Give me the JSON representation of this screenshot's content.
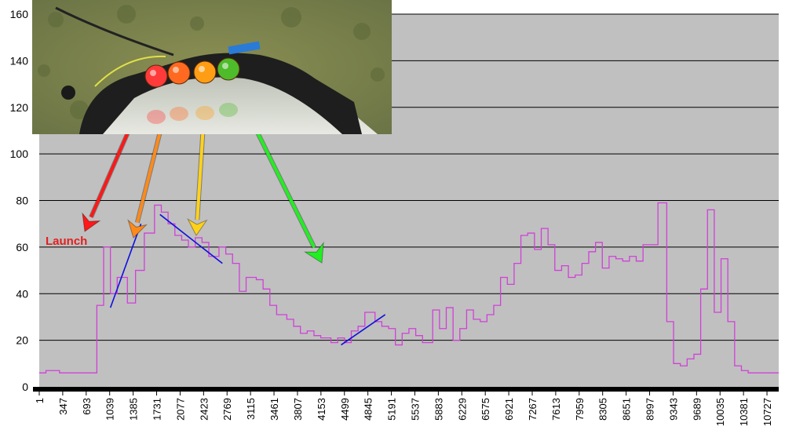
{
  "chart_data": {
    "type": "line",
    "title": "",
    "xlabel": "",
    "ylabel": "",
    "ylim": [
      0,
      160
    ],
    "yticks": [
      0,
      20,
      40,
      60,
      80,
      100,
      120,
      140,
      160
    ],
    "xticks": [
      "1",
      "347",
      "693",
      "1039",
      "1385",
      "1731",
      "2077",
      "2423",
      "2769",
      "3115",
      "3461",
      "3807",
      "4153",
      "4499",
      "4845",
      "5191",
      "5537",
      "5883",
      "6229",
      "6575",
      "6921",
      "7267",
      "7613",
      "7959",
      "8305",
      "8651",
      "8997",
      "9343",
      "9689",
      "10035",
      "10381",
      "10727"
    ],
    "grid": true,
    "series_color": "#d040d8",
    "plot_background": "#c0c0c0",
    "series": [
      {
        "style": "step",
        "points": [
          [
            1,
            6
          ],
          [
            100,
            7
          ],
          [
            300,
            6
          ],
          [
            850,
            35
          ],
          [
            950,
            60
          ],
          [
            1050,
            40
          ],
          [
            1150,
            47
          ],
          [
            1300,
            36
          ],
          [
            1420,
            50
          ],
          [
            1550,
            66
          ],
          [
            1700,
            78
          ],
          [
            1800,
            75
          ],
          [
            1900,
            70
          ],
          [
            2000,
            65
          ],
          [
            2100,
            63
          ],
          [
            2200,
            60
          ],
          [
            2300,
            64
          ],
          [
            2400,
            62
          ],
          [
            2500,
            56
          ],
          [
            2650,
            60
          ],
          [
            2750,
            57
          ],
          [
            2850,
            53
          ],
          [
            2950,
            41
          ],
          [
            3050,
            47
          ],
          [
            3200,
            46
          ],
          [
            3300,
            42
          ],
          [
            3400,
            35
          ],
          [
            3500,
            31
          ],
          [
            3650,
            29
          ],
          [
            3750,
            26
          ],
          [
            3850,
            23
          ],
          [
            3950,
            24
          ],
          [
            4050,
            22
          ],
          [
            4150,
            21
          ],
          [
            4300,
            19
          ],
          [
            4400,
            21
          ],
          [
            4500,
            19
          ],
          [
            4600,
            24
          ],
          [
            4700,
            26
          ],
          [
            4800,
            32
          ],
          [
            4950,
            28
          ],
          [
            5050,
            26
          ],
          [
            5150,
            25
          ],
          [
            5250,
            18
          ],
          [
            5350,
            23
          ],
          [
            5450,
            25
          ],
          [
            5550,
            22
          ],
          [
            5650,
            19
          ],
          [
            5800,
            33
          ],
          [
            5900,
            25
          ],
          [
            6000,
            34
          ],
          [
            6100,
            20
          ],
          [
            6200,
            25
          ],
          [
            6300,
            33
          ],
          [
            6400,
            29
          ],
          [
            6500,
            28
          ],
          [
            6600,
            31
          ],
          [
            6700,
            35
          ],
          [
            6800,
            47
          ],
          [
            6900,
            44
          ],
          [
            7000,
            53
          ],
          [
            7100,
            65
          ],
          [
            7200,
            66
          ],
          [
            7300,
            59
          ],
          [
            7400,
            68
          ],
          [
            7500,
            61
          ],
          [
            7600,
            50
          ],
          [
            7700,
            52
          ],
          [
            7800,
            47
          ],
          [
            7900,
            48
          ],
          [
            8000,
            53
          ],
          [
            8100,
            58
          ],
          [
            8200,
            62
          ],
          [
            8300,
            51
          ],
          [
            8400,
            56
          ],
          [
            8500,
            55
          ],
          [
            8600,
            54
          ],
          [
            8700,
            56
          ],
          [
            8800,
            54
          ],
          [
            8900,
            61
          ],
          [
            9000,
            61
          ],
          [
            9120,
            79
          ],
          [
            9250,
            28
          ],
          [
            9350,
            10
          ],
          [
            9450,
            9
          ],
          [
            9550,
            12
          ],
          [
            9650,
            14
          ],
          [
            9750,
            42
          ],
          [
            9850,
            76
          ],
          [
            9950,
            32
          ],
          [
            10050,
            55
          ],
          [
            10150,
            28
          ],
          [
            10250,
            9
          ],
          [
            10350,
            7
          ],
          [
            10450,
            6
          ],
          [
            10900,
            6
          ]
        ]
      }
    ],
    "trend_lines": [
      {
        "color": "#1010e0",
        "points": [
          [
            1050,
            34
          ],
          [
            1500,
            70
          ]
        ]
      },
      {
        "color": "#1010e0",
        "points": [
          [
            1780,
            74
          ],
          [
            2700,
            53
          ]
        ]
      },
      {
        "color": "#1010e0",
        "points": [
          [
            4450,
            18
          ],
          [
            5100,
            31
          ]
        ]
      }
    ],
    "annotations": [
      {
        "text": "Launch",
        "color": "#e02020"
      }
    ]
  },
  "arrows": [
    {
      "color": "#ff1818",
      "name": "red-arrow"
    },
    {
      "color": "#ff8a1a",
      "name": "orange-arrow"
    },
    {
      "color": "#ffd21a",
      "name": "yellow-arrow"
    },
    {
      "color": "#22ee22",
      "name": "green-arrow"
    }
  ],
  "photo": {
    "led_colors": [
      "#ff3a3a",
      "#ff6a20",
      "#ff9d14",
      "#4dbb2a"
    ]
  }
}
